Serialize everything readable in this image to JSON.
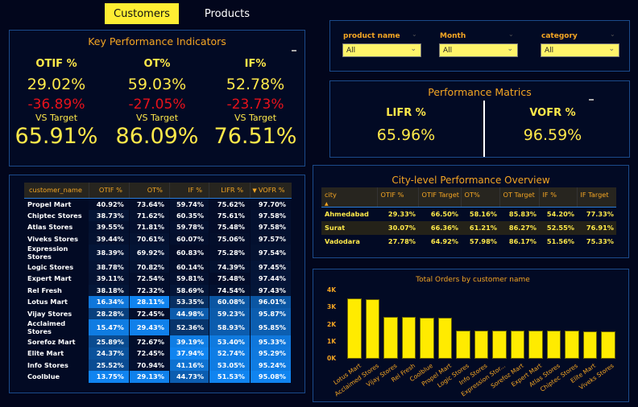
{
  "tabs": [
    {
      "label": "Customers",
      "active": true
    },
    {
      "label": "Products",
      "active": false
    }
  ],
  "kpi_panel": {
    "title": "Key Performance Indicators",
    "items": [
      {
        "label": "OTIF %",
        "value": "29.02%",
        "delta": "-36.89%",
        "vs_label": "VS Target",
        "target": "65.91%"
      },
      {
        "label": "OT%",
        "value": "59.03%",
        "delta": "-27.05%",
        "vs_label": "VS Target",
        "target": "86.09%"
      },
      {
        "label": "IF%",
        "value": "52.78%",
        "delta": "-23.73%",
        "vs_label": "VS Target",
        "target": "76.51%"
      }
    ]
  },
  "slicers": [
    {
      "label": "product name",
      "value": "All"
    },
    {
      "label": "Month",
      "value": "All"
    },
    {
      "label": "category",
      "value": "All"
    }
  ],
  "performance_panel": {
    "title": "Performance Matrics",
    "items": [
      {
        "label": "LIFR %",
        "value": "65.96%"
      },
      {
        "label": "VOFR %",
        "value": "96.59%"
      }
    ]
  },
  "customer_table": {
    "columns": [
      "customer_name",
      "OTIF %",
      "OT%",
      "IF %",
      "LIFR %",
      "VOFR %"
    ],
    "sorted_column": "VOFR %",
    "rows": [
      [
        "Propel Mart",
        "40.92%",
        "73.64%",
        "59.74%",
        "75.62%",
        "97.70%"
      ],
      [
        "Chiptec Stores",
        "38.73%",
        "71.62%",
        "60.35%",
        "75.61%",
        "97.58%"
      ],
      [
        "Atlas Stores",
        "39.55%",
        "71.81%",
        "59.78%",
        "75.48%",
        "97.58%"
      ],
      [
        "Viveks Stores",
        "39.44%",
        "70.61%",
        "60.07%",
        "75.06%",
        "97.57%"
      ],
      [
        "Expression Stores",
        "38.39%",
        "69.92%",
        "60.83%",
        "75.28%",
        "97.54%"
      ],
      [
        "Logic Stores",
        "38.78%",
        "70.82%",
        "60.14%",
        "74.39%",
        "97.45%"
      ],
      [
        "Expert Mart",
        "39.11%",
        "72.54%",
        "59.81%",
        "75.48%",
        "97.44%"
      ],
      [
        "Rel Fresh",
        "38.18%",
        "72.32%",
        "58.69%",
        "74.54%",
        "97.43%"
      ],
      [
        "Lotus Mart",
        "16.34%",
        "28.11%",
        "53.35%",
        "60.08%",
        "96.01%"
      ],
      [
        "Vijay Stores",
        "28.28%",
        "72.45%",
        "44.98%",
        "59.23%",
        "95.87%"
      ],
      [
        "Acclaimed Stores",
        "15.47%",
        "29.43%",
        "52.36%",
        "58.93%",
        "95.85%"
      ],
      [
        "Sorefoz Mart",
        "25.89%",
        "72.67%",
        "39.19%",
        "53.40%",
        "95.33%"
      ],
      [
        "Elite Mart",
        "24.37%",
        "72.45%",
        "37.94%",
        "52.74%",
        "95.29%"
      ],
      [
        "Info Stores",
        "25.52%",
        "70.94%",
        "41.16%",
        "53.05%",
        "95.24%"
      ],
      [
        "Coolblue",
        "13.75%",
        "29.13%",
        "44.73%",
        "51.53%",
        "95.08%"
      ]
    ]
  },
  "city_table": {
    "title": "City-level Performance Overview",
    "columns": [
      "city",
      "OTIF %",
      "OTIF Target",
      "OT%",
      "OT Target",
      "IF %",
      "IF Target"
    ],
    "sorted_column": "city",
    "rows": [
      [
        "Ahmedabad",
        "29.33%",
        "66.50%",
        "58.16%",
        "85.83%",
        "54.20%",
        "77.33%"
      ],
      [
        "Surat",
        "30.07%",
        "66.36%",
        "61.21%",
        "86.27%",
        "52.55%",
        "76.91%"
      ],
      [
        "Vadodara",
        "27.78%",
        "64.92%",
        "57.98%",
        "86.17%",
        "51.56%",
        "75.33%"
      ]
    ]
  },
  "chart_data": {
    "type": "bar",
    "title": "Total Orders by customer name",
    "xlabel": "",
    "ylabel": "",
    "categories": [
      "Lotus Mart",
      "Acclaimed Stores",
      "Vijay Stores",
      "Rel Fresh",
      "Coolblue",
      "Propel Mart",
      "Logic Stores",
      "Info Stores",
      "Expression Stor...",
      "Sorefoz Mart",
      "Expert Mart",
      "Atlas Stores",
      "Chiptec Stores",
      "Elite Mart",
      "Viveks Stores"
    ],
    "values": [
      3530,
      3480,
      2430,
      2430,
      2420,
      2380,
      1650,
      1640,
      1630,
      1630,
      1630,
      1630,
      1630,
      1620,
      1620
    ],
    "ylim": [
      0,
      4000
    ],
    "yticks": [
      0,
      1000,
      2000,
      3000,
      4000
    ],
    "ytick_labels": [
      "0K",
      "1K",
      "2K",
      "3K",
      "4K"
    ],
    "bar_color": "#ffeb00",
    "grid": false
  },
  "colors": {
    "background": "#02061c",
    "accent_yellow": "#ffe94a",
    "title_orange": "#f5a623",
    "negative_red": "#e8121b",
    "panel_border": "#1b4a8a"
  }
}
